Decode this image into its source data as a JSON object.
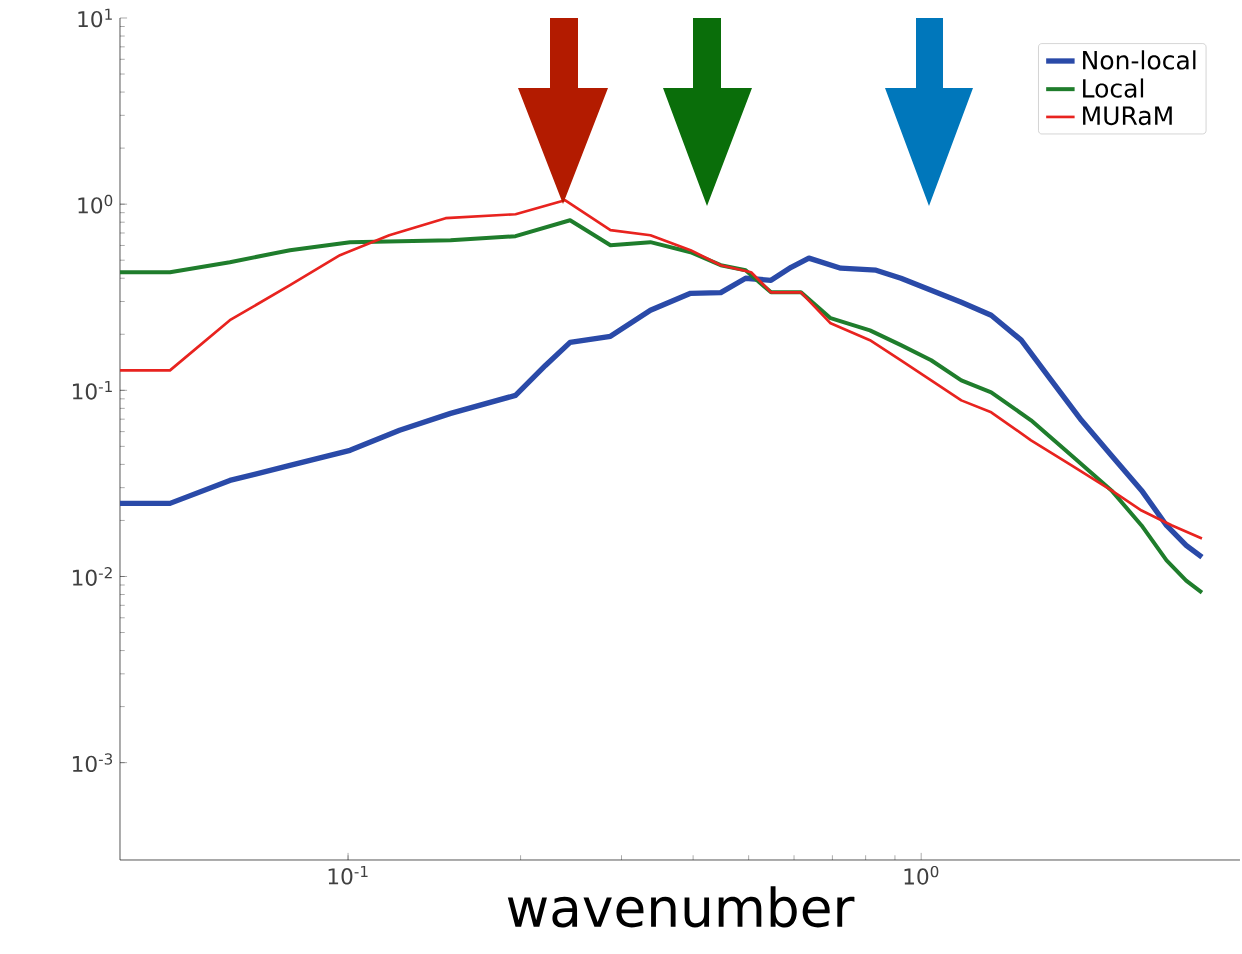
{
  "chart_data": {
    "type": "line",
    "xlabel": "wavenumber",
    "log": "xy",
    "grid": false,
    "legend": "top right",
    "marker": "none",
    "line_style": "solid",
    "xlim": [
      0.04,
      3.6
    ],
    "ylim": [
      0.0003,
      10
    ],
    "xticks": [
      {
        "value": 0.1,
        "label": "10$^{-1}$"
      },
      {
        "value": 1,
        "label": "10$^{0}$"
      }
    ],
    "yticks": [
      {
        "value": 0.001,
        "label": "10$^{-3}$"
      },
      {
        "value": 0.01,
        "label": "10$^{-2}$"
      },
      {
        "value": 0.1,
        "label": "10$^{-1}$"
      },
      {
        "value": 1,
        "label": "10$^{0}$"
      },
      {
        "value": 10,
        "label": "10$^{1}$"
      }
    ],
    "series": [
      {
        "name": "Non-local",
        "color": "#2a4aa8",
        "x": [
          0.04,
          0.0489,
          0.0622,
          0.0792,
          0.1008,
          0.123,
          0.151,
          0.196,
          0.221,
          0.244,
          0.287,
          0.337,
          0.396,
          0.447,
          0.494,
          0.547,
          0.593,
          0.637,
          0.724,
          0.834,
          0.922,
          1.041,
          1.175,
          1.325,
          1.495,
          1.687,
          1.904,
          2.148,
          2.424,
          2.68,
          2.9,
          3.09
        ],
        "values": [
          0.0247,
          0.0247,
          0.0328,
          0.0395,
          0.0476,
          0.061,
          0.0752,
          0.094,
          0.136,
          0.181,
          0.195,
          0.269,
          0.332,
          0.335,
          0.4,
          0.39,
          0.458,
          0.513,
          0.453,
          0.442,
          0.4,
          0.345,
          0.297,
          0.253,
          0.186,
          0.113,
          0.069,
          0.0447,
          0.029,
          0.0188,
          0.0147,
          0.0127
        ]
      },
      {
        "name": "Local",
        "color": "#1f7d2c",
        "x": [
          0.04,
          0.0489,
          0.0622,
          0.0792,
          0.1008,
          0.151,
          0.196,
          0.244,
          0.287,
          0.337,
          0.396,
          0.447,
          0.494,
          0.547,
          0.617,
          0.695,
          0.814,
          0.922,
          1.041,
          1.175,
          1.325,
          1.555,
          1.83,
          2.148,
          2.424,
          2.68,
          2.9,
          3.09
        ],
        "values": [
          0.431,
          0.431,
          0.488,
          0.566,
          0.625,
          0.64,
          0.673,
          0.82,
          0.602,
          0.625,
          0.552,
          0.47,
          0.442,
          0.336,
          0.336,
          0.244,
          0.21,
          0.175,
          0.145,
          0.113,
          0.0976,
          0.069,
          0.0447,
          0.029,
          0.0188,
          0.0122,
          0.0095,
          0.0082
        ]
      },
      {
        "name": "MURaM",
        "color": "#e8231f",
        "x": [
          0.04,
          0.0489,
          0.0622,
          0.0792,
          0.0968,
          0.118,
          0.148,
          0.196,
          0.239,
          0.287,
          0.337,
          0.396,
          0.447,
          0.505,
          0.547,
          0.617,
          0.695,
          0.814,
          0.922,
          1.041,
          1.175,
          1.325,
          1.555,
          1.83,
          2.148,
          2.424,
          2.74,
          3.09
        ],
        "values": [
          0.128,
          0.128,
          0.238,
          0.367,
          0.532,
          0.681,
          0.841,
          0.883,
          1.05,
          0.725,
          0.681,
          0.566,
          0.47,
          0.431,
          0.336,
          0.336,
          0.229,
          0.186,
          0.145,
          0.113,
          0.0883,
          0.0762,
          0.0539,
          0.0395,
          0.029,
          0.0226,
          0.0188,
          0.016
        ]
      }
    ]
  }
}
